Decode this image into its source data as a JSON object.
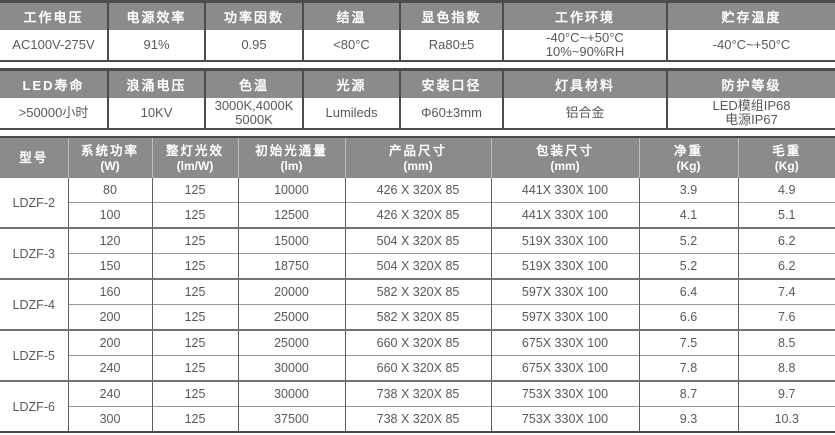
{
  "colors": {
    "header_bg": "#8b8b8b",
    "header_text": "#ffffff",
    "body_text": "#595959",
    "frame": "#4c4c4c",
    "grid_dark": "#5f5f5f",
    "grid_light": "#9a9a9a",
    "group_line": "#747474",
    "header_divider": "#bdbdbd"
  },
  "spec_tables": [
    {
      "columns": [
        {
          "label": "工作电压",
          "value": "AC100V-275V"
        },
        {
          "label": "电源效率",
          "value": "91%"
        },
        {
          "label": "功率因数",
          "value": "0.95"
        },
        {
          "label": "结温",
          "value": "<80°C"
        },
        {
          "label": "显色指数",
          "value": "Ra80±5"
        },
        {
          "label": "工作环境",
          "value": "-40°C~+50°C\n10%~90%RH"
        },
        {
          "label": "贮存温度",
          "value": "-40°C~+50°C"
        }
      ]
    },
    {
      "columns": [
        {
          "label": "LED寿命",
          "value": ">50000小时"
        },
        {
          "label": "浪涌电压",
          "value": "10KV"
        },
        {
          "label": "色温",
          "value": "3000K,4000K\n5000K"
        },
        {
          "label": "光源",
          "value": "Lumileds"
        },
        {
          "label": "安装口径",
          "value": "Φ60±3mm"
        },
        {
          "label": "灯具材料",
          "value": "铝合金"
        },
        {
          "label": "防护等级",
          "value": "LED模组IP68\n电源IP67"
        }
      ]
    }
  ],
  "main_table": {
    "headers": [
      {
        "title": "型号",
        "unit": ""
      },
      {
        "title": "系统功率",
        "unit": "(W)"
      },
      {
        "title": "整灯光效",
        "unit": "(lm/W)"
      },
      {
        "title": "初始光通量",
        "unit": "(lm)"
      },
      {
        "title": "产品尺寸",
        "unit": "(mm)"
      },
      {
        "title": "包装尺寸",
        "unit": "(mm)"
      },
      {
        "title": "净重",
        "unit": "(Kg)"
      },
      {
        "title": "毛重",
        "unit": "(Kg)"
      }
    ],
    "groups": [
      {
        "model": "LDZF-2",
        "rows": [
          [
            "80",
            "125",
            "10000",
            "426 X 320X 85",
            "441X 330X 100",
            "3.9",
            "4.9"
          ],
          [
            "100",
            "125",
            "12500",
            "426 X 320X 85",
            "441X 330X 100",
            "4.1",
            "5.1"
          ]
        ]
      },
      {
        "model": "LDZF-3",
        "rows": [
          [
            "120",
            "125",
            "15000",
            "504 X 320X 85",
            "519X 330X 100",
            "5.2",
            "6.2"
          ],
          [
            "150",
            "125",
            "18750",
            "504 X 320X 85",
            "519X 330X 100",
            "5.2",
            "6.2"
          ]
        ]
      },
      {
        "model": "LDZF-4",
        "rows": [
          [
            "160",
            "125",
            "20000",
            "582 X 320X 85",
            "597X 330X 100",
            "6.4",
            "7.4"
          ],
          [
            "200",
            "125",
            "25000",
            "582 X 320X 85",
            "597X 330X 100",
            "6.6",
            "7.6"
          ]
        ]
      },
      {
        "model": "LDZF-5",
        "rows": [
          [
            "200",
            "125",
            "25000",
            "660 X 320X 85",
            "675X 330X 100",
            "7.5",
            "8.5"
          ],
          [
            "240",
            "125",
            "30000",
            "660 X 320X 85",
            "675X 330X 100",
            "7.8",
            "8.8"
          ]
        ]
      },
      {
        "model": "LDZF-6",
        "rows": [
          [
            "240",
            "125",
            "30000",
            "738 X 320X 85",
            "753X 330X 100",
            "8.7",
            "9.7"
          ],
          [
            "300",
            "125",
            "37500",
            "738 X 320X 85",
            "753X 330X 100",
            "9.3",
            "10.3"
          ]
        ]
      }
    ]
  }
}
